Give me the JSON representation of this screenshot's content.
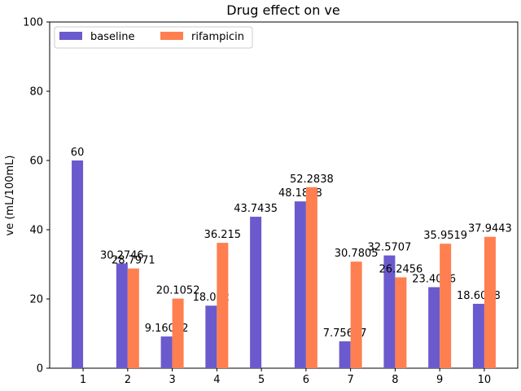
{
  "chart_data": {
    "type": "bar",
    "title": "Drug effect on ve",
    "xlabel": "",
    "ylabel": "ve (mL/100mL)",
    "ylim": [
      0,
      100
    ],
    "yticks": [
      0,
      20,
      40,
      60,
      80,
      100
    ],
    "categories": [
      "1",
      "2",
      "3",
      "4",
      "5",
      "6",
      "7",
      "8",
      "9",
      "10"
    ],
    "grid": false,
    "legend_position": "top-left",
    "series": [
      {
        "name": "baseline",
        "color": "#6a5acd",
        "values": [
          60,
          30.2746,
          9.16012,
          18.062,
          43.7435,
          48.1848,
          7.75657,
          32.5707,
          23.4066,
          18.6008
        ],
        "labels": [
          "60",
          "30.2746",
          "9.16012",
          "18.062",
          "43.7435",
          "48.1848",
          "7.75657",
          "32.5707",
          "23.4066",
          "18.6008"
        ]
      },
      {
        "name": "rifampicin",
        "color": "#ff7f50",
        "values": [
          null,
          28.7971,
          20.1052,
          36.215,
          null,
          52.2838,
          30.7805,
          26.2456,
          35.9519,
          37.9443
        ],
        "labels": [
          null,
          "28.7971",
          "20.1052",
          "36.215",
          null,
          "52.2838",
          "30.7805",
          "26.2456",
          "35.9519",
          "37.9443"
        ]
      }
    ]
  }
}
